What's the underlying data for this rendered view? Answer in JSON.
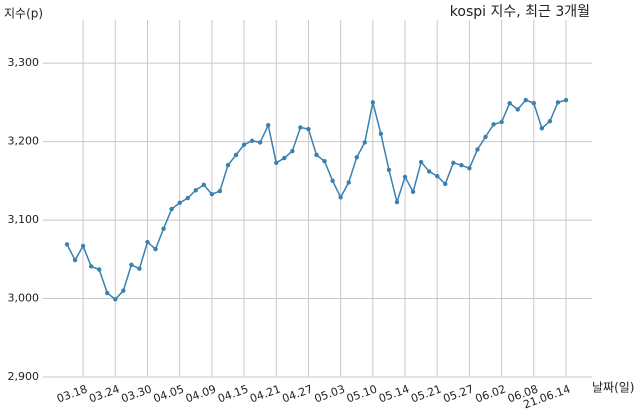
{
  "chart_data": {
    "type": "line",
    "title": "kospi 지수, 최근 3개월",
    "y_label": "지수(p)",
    "x_label": "날짜(일)",
    "categories": [
      null,
      null,
      "03.18",
      null,
      null,
      null,
      "03.24",
      null,
      null,
      null,
      "03.30",
      null,
      null,
      null,
      "04.05",
      null,
      null,
      null,
      "04.09",
      null,
      null,
      null,
      "04.15",
      null,
      null,
      null,
      "04.21",
      null,
      null,
      null,
      "04.27",
      null,
      null,
      null,
      "05.03",
      null,
      null,
      null,
      "05.10",
      null,
      null,
      null,
      "05.14",
      null,
      null,
      null,
      "05.21",
      null,
      null,
      null,
      "05.27",
      null,
      null,
      null,
      "06.02",
      null,
      null,
      null,
      "06.08",
      null,
      null,
      null,
      "21.06.14"
    ],
    "values": [
      3069,
      3049,
      3067,
      3041,
      3037,
      3007,
      2999,
      3010,
      3043,
      3038,
      3072,
      3063,
      3089,
      3114,
      3122,
      3128,
      3138,
      3145,
      3133,
      3137,
      3170,
      3183,
      3196,
      3201,
      3199,
      3221,
      3173,
      3179,
      3188,
      3218,
      3216,
      3183,
      3175,
      3150,
      3129,
      3148,
      3180,
      3199,
      3250,
      3210,
      3164,
      3123,
      3155,
      3136,
      3174,
      3162,
      3156,
      3146,
      3173,
      3170,
      3166,
      3190,
      3206,
      3222,
      3225,
      3249,
      3241,
      3253,
      3249,
      3217,
      3226,
      3250,
      3253
    ],
    "color": "#3a80b0",
    "ylim": [
      2900,
      3355
    ],
    "yticks": [
      {
        "value": 2900,
        "label": "2,900"
      },
      {
        "value": 3000,
        "label": "3,000"
      },
      {
        "value": 3100,
        "label": "3,100"
      },
      {
        "value": 3200,
        "label": "3,200"
      },
      {
        "value": 3300,
        "label": "3,300"
      }
    ],
    "grid": true
  }
}
